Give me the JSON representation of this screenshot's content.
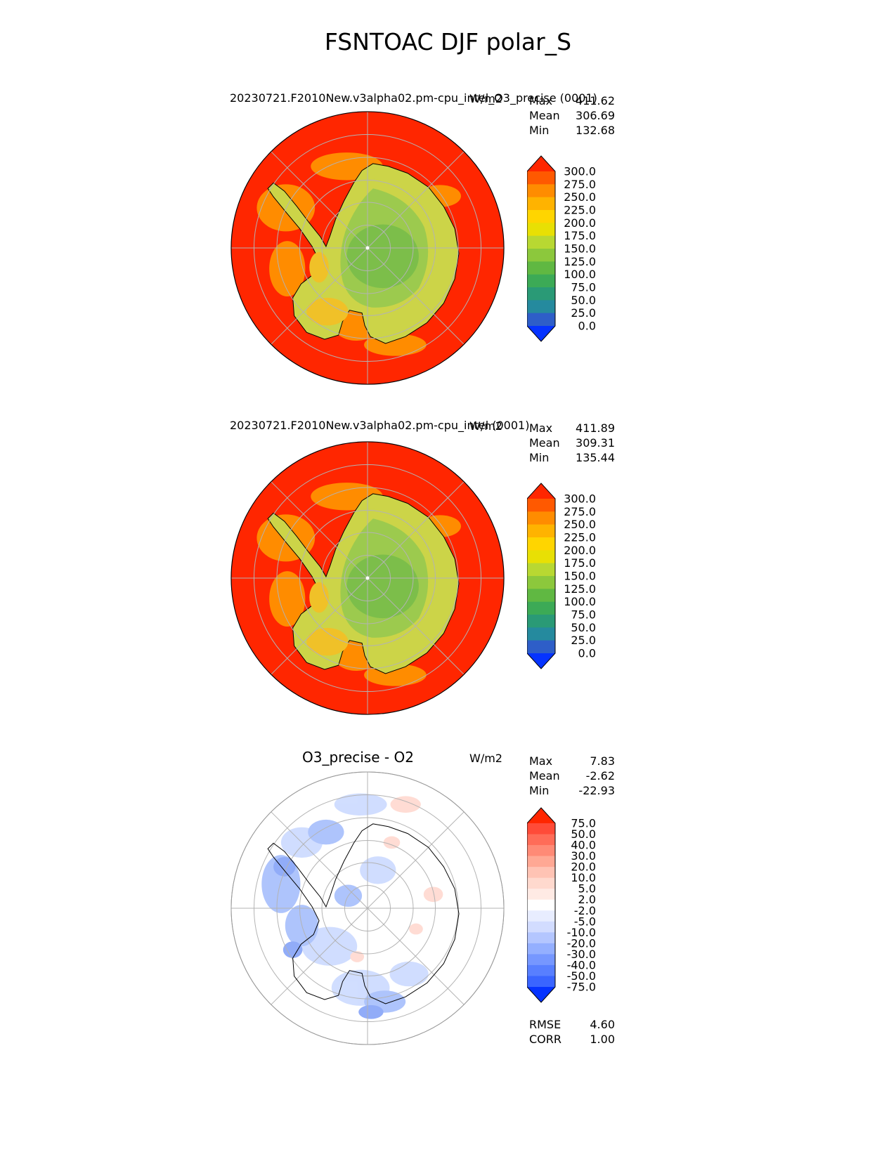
{
  "title": "FSNTOAC DJF polar_S",
  "colors": {
    "ocean": "#ff2600",
    "coast_orange": "#ff8c00",
    "continent_outer": "#ccd448",
    "continent_mid": "#9cca4e",
    "continent_inner": "#7cbe4a",
    "patch_yellow": "#f0c128",
    "graticule": "#b3b3b3",
    "coastline": "#000000",
    "diff_blue_light": "#ccdaff",
    "diff_blue_mid": "#a6befc",
    "diff_blue_dark": "#86a4f8",
    "diff_pink": "#ffd9d0"
  },
  "panels": [
    {
      "title": "20230721.F2010New.v3alpha02.pm-cpu_intel_O3_precise (0001)",
      "units": "W/m2",
      "stats": [
        {
          "label": "Max",
          "value": "411.62"
        },
        {
          "label": "Mean",
          "value": "306.69"
        },
        {
          "label": "Min",
          "value": "132.68"
        }
      ],
      "colorbar": {
        "ticks": [
          "300.0",
          "275.0",
          "250.0",
          "225.0",
          "200.0",
          "175.0",
          "150.0",
          "125.0",
          "100.0",
          "75.0",
          "50.0",
          "25.0",
          "0.0"
        ],
        "segment_colors": [
          "#ff5900",
          "#ff8c00",
          "#ffb300",
          "#ffd500",
          "#e8e004",
          "#b8d832",
          "#8cc83c",
          "#60b842",
          "#3caa56",
          "#2a9a76",
          "#258a9e",
          "#2e5ec8"
        ],
        "over_color": "#ff2600",
        "under_color": "#0533ff"
      }
    },
    {
      "title": "20230721.F2010New.v3alpha02.pm-cpu_intel (0001)",
      "units": "W/m2",
      "stats": [
        {
          "label": "Max",
          "value": "411.89"
        },
        {
          "label": "Mean",
          "value": "309.31"
        },
        {
          "label": "Min",
          "value": "135.44"
        }
      ],
      "colorbar": {
        "ticks": [
          "300.0",
          "275.0",
          "250.0",
          "225.0",
          "200.0",
          "175.0",
          "150.0",
          "125.0",
          "100.0",
          "75.0",
          "50.0",
          "25.0",
          "0.0"
        ],
        "segment_colors": [
          "#ff5900",
          "#ff8c00",
          "#ffb300",
          "#ffd500",
          "#e8e004",
          "#b8d832",
          "#8cc83c",
          "#60b842",
          "#3caa56",
          "#2a9a76",
          "#258a9e",
          "#2e5ec8"
        ],
        "over_color": "#ff2600",
        "under_color": "#0533ff"
      }
    },
    {
      "title": "O3_precise - O2",
      "units": "W/m2",
      "stats": [
        {
          "label": "Max",
          "value": "7.83"
        },
        {
          "label": "Mean",
          "value": "-2.62"
        },
        {
          "label": "Min",
          "value": "-22.93"
        }
      ],
      "colorbar": {
        "ticks": [
          "75.0",
          "50.0",
          "40.0",
          "30.0",
          "20.0",
          "10.0",
          "5.0",
          "2.0",
          "-2.0",
          "-5.0",
          "-10.0",
          "-20.0",
          "-30.0",
          "-40.0",
          "-50.0",
          "-75.0"
        ],
        "segment_colors": [
          "#ff4b38",
          "#ff6c58",
          "#ff8a76",
          "#ffa894",
          "#ffc3b4",
          "#ffd9ce",
          "#ffeae4",
          "#ffffff",
          "#e8edff",
          "#d2dcff",
          "#b4c6ff",
          "#94afff",
          "#7697ff",
          "#587fff",
          "#3a65ff"
        ],
        "over_color": "#ff2600",
        "under_color": "#0533ff"
      },
      "metrics": [
        {
          "label": "RMSE",
          "value": "4.60"
        },
        {
          "label": "CORR",
          "value": "1.00"
        }
      ]
    }
  ],
  "chart_data": [
    {
      "type": "heatmap",
      "projection": "south-polar",
      "variable": "FSNTOAC",
      "season": "DJF",
      "title": "20230721.F2010New.v3alpha02.pm-cpu_intel_O3_precise (0001)",
      "units": "W/m2",
      "levels": [
        0,
        25,
        50,
        75,
        100,
        125,
        150,
        175,
        200,
        225,
        250,
        275,
        300
      ],
      "stats": {
        "max": 411.62,
        "mean": 306.69,
        "min": 132.68
      }
    },
    {
      "type": "heatmap",
      "projection": "south-polar",
      "variable": "FSNTOAC",
      "season": "DJF",
      "title": "20230721.F2010New.v3alpha02.pm-cpu_intel (0001)",
      "units": "W/m2",
      "levels": [
        0,
        25,
        50,
        75,
        100,
        125,
        150,
        175,
        200,
        225,
        250,
        275,
        300
      ],
      "stats": {
        "max": 411.89,
        "mean": 309.31,
        "min": 135.44
      }
    },
    {
      "type": "heatmap",
      "projection": "south-polar",
      "variable": "FSNTOAC difference",
      "season": "DJF",
      "title": "O3_precise - O2",
      "units": "W/m2",
      "levels": [
        -75,
        -50,
        -40,
        -30,
        -20,
        -10,
        -5,
        -2,
        2,
        5,
        10,
        20,
        30,
        40,
        50,
        75
      ],
      "stats": {
        "max": 7.83,
        "mean": -2.62,
        "min": -22.93,
        "rmse": 4.6,
        "corr": 1.0
      }
    }
  ]
}
